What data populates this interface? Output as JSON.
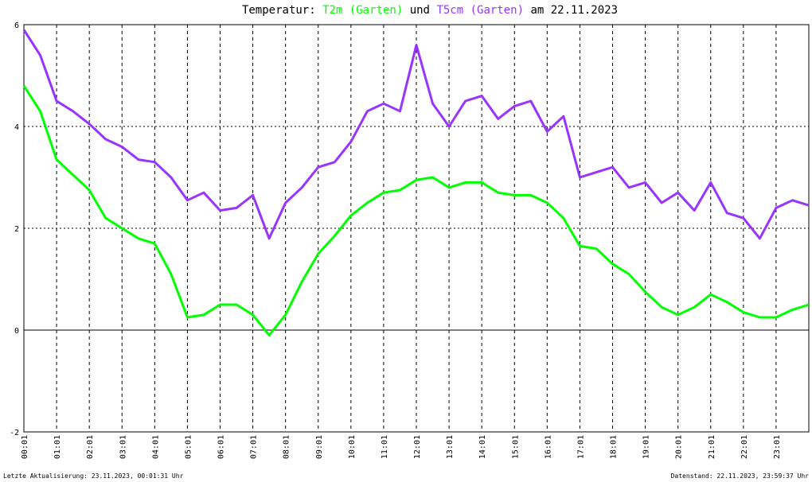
{
  "chart_data": {
    "type": "line",
    "title_prefix": "Temperatur:",
    "title_join": "und",
    "title_suffix": "am 22.11.2023",
    "footer_left": "Letzte Aktualisierung: 23.11.2023, 00:01:31 Uhr",
    "footer_right": "Datenstand: 22.11.2023, 23:59:37 Uhr",
    "x": [
      0,
      0.5,
      1,
      1.5,
      2,
      2.5,
      3,
      3.5,
      4,
      4.5,
      5,
      5.5,
      6,
      6.5,
      7,
      7.5,
      8,
      8.5,
      9,
      9.5,
      10,
      10.5,
      11,
      11.5,
      12,
      12.5,
      13,
      13.5,
      14,
      14.5,
      15,
      15.5,
      16,
      16.5,
      17,
      17.5,
      18,
      18.5,
      19,
      19.5,
      20,
      20.5,
      21,
      21.5,
      22,
      22.5,
      23,
      23.5,
      24
    ],
    "series": [
      {
        "name": "T2m (Garten)",
        "color": "#00ff00",
        "values": [
          4.8,
          4.3,
          3.35,
          3.05,
          2.75,
          2.2,
          2.0,
          1.8,
          1.7,
          1.1,
          0.25,
          0.3,
          0.5,
          0.5,
          0.3,
          -0.1,
          0.3,
          0.95,
          1.5,
          1.85,
          2.25,
          2.5,
          2.7,
          2.75,
          2.95,
          3.0,
          2.8,
          2.9,
          2.9,
          2.7,
          2.65,
          2.65,
          2.5,
          2.2,
          1.65,
          1.6,
          1.3,
          1.1,
          0.75,
          0.45,
          0.3,
          0.45,
          0.7,
          0.55,
          0.35,
          0.25,
          0.25,
          0.4,
          0.5
        ]
      },
      {
        "name": "T5cm (Garten)",
        "color": "#9933ff",
        "values": [
          5.9,
          5.4,
          4.5,
          4.3,
          4.05,
          3.75,
          3.6,
          3.35,
          3.3,
          3.0,
          2.55,
          2.7,
          2.35,
          2.4,
          2.65,
          1.8,
          2.5,
          2.8,
          3.2,
          3.3,
          3.7,
          4.3,
          4.45,
          4.3,
          5.6,
          4.45,
          4.0,
          4.5,
          4.6,
          4.15,
          4.4,
          4.5,
          3.9,
          4.2,
          3.0,
          3.1,
          3.2,
          2.8,
          2.9,
          2.5,
          2.7,
          2.35,
          2.9,
          2.3,
          2.2,
          1.8,
          2.4,
          2.55,
          2.45
        ]
      }
    ],
    "xlim": [
      0,
      24
    ],
    "xticks": [
      {
        "value": 0,
        "label": "00:01"
      },
      {
        "value": 1,
        "label": "01:01"
      },
      {
        "value": 2,
        "label": "02:01"
      },
      {
        "value": 3,
        "label": "03:01"
      },
      {
        "value": 4,
        "label": "04:01"
      },
      {
        "value": 5,
        "label": "05:01"
      },
      {
        "value": 6,
        "label": "06:01"
      },
      {
        "value": 7,
        "label": "07:01"
      },
      {
        "value": 8,
        "label": "08:01"
      },
      {
        "value": 9,
        "label": "09:01"
      },
      {
        "value": 10,
        "label": "10:01"
      },
      {
        "value": 11,
        "label": "11:01"
      },
      {
        "value": 12,
        "label": "12:01"
      },
      {
        "value": 13,
        "label": "13:01"
      },
      {
        "value": 14,
        "label": "14:01"
      },
      {
        "value": 15,
        "label": "15:01"
      },
      {
        "value": 16,
        "label": "16:01"
      },
      {
        "value": 17,
        "label": "17:01"
      },
      {
        "value": 18,
        "label": "18:01"
      },
      {
        "value": 19,
        "label": "19:01"
      },
      {
        "value": 20,
        "label": "20:01"
      },
      {
        "value": 21,
        "label": "21:01"
      },
      {
        "value": 22,
        "label": "22:01"
      },
      {
        "value": 23,
        "label": "23:01"
      }
    ],
    "ylim": [
      -2,
      6
    ],
    "yticks": [
      -2,
      0,
      2,
      4,
      6
    ],
    "grid": true
  }
}
